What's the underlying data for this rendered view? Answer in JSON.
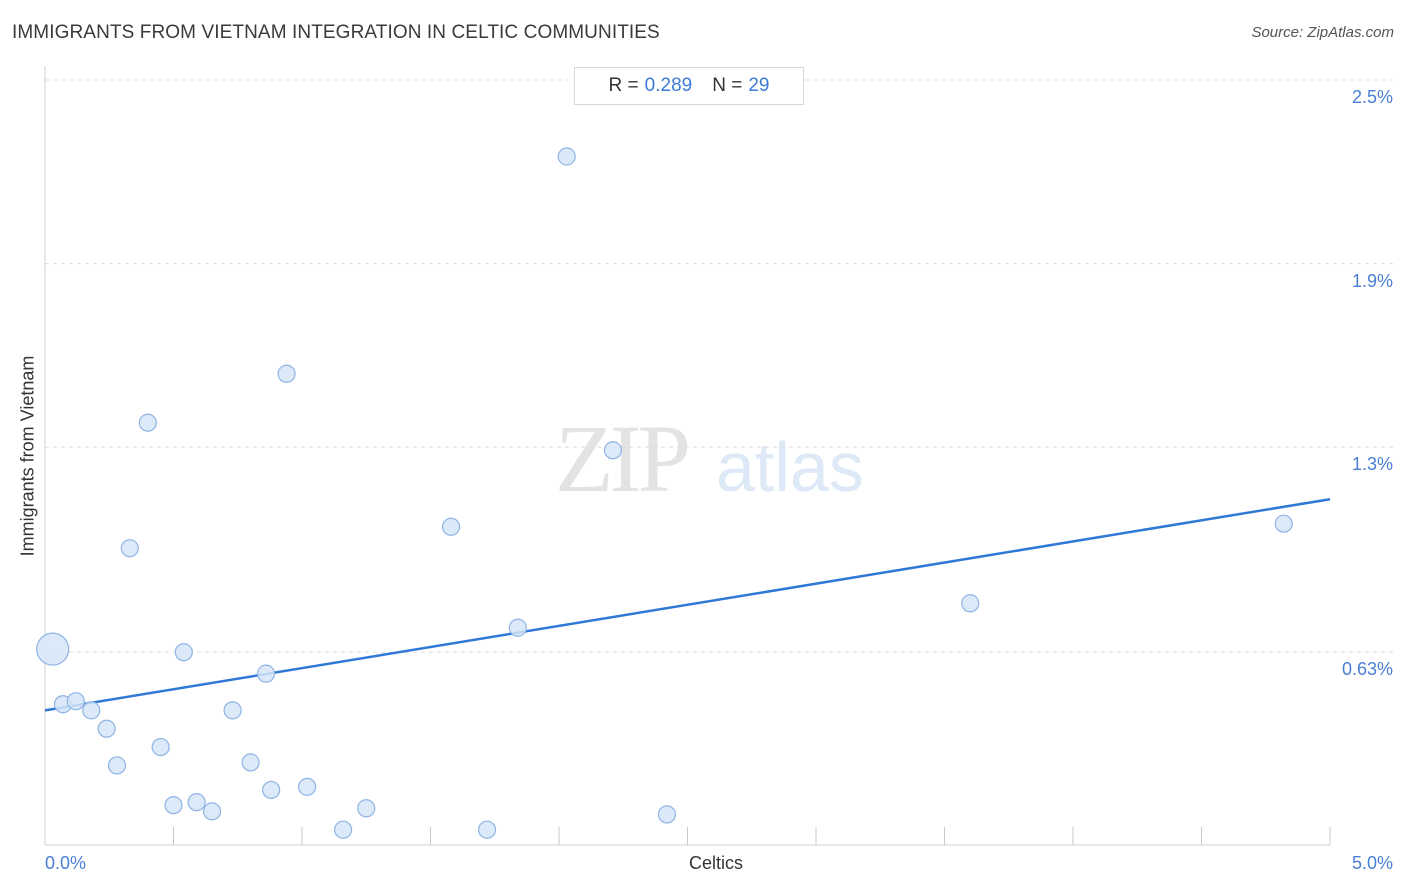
{
  "title": "IMMIGRANTS FROM VIETNAM INTEGRATION IN CELTIC COMMUNITIES",
  "source": "Source: ZipAtlas.com",
  "stats": {
    "r_label": "R =",
    "r_value": "0.289",
    "n_label": "N =",
    "n_value": "29"
  },
  "colors": {
    "accent": "#2f78d6",
    "point_fill": "#d6e5f8",
    "point_stroke": "#8fb4e4",
    "grid": "#dddddd"
  },
  "chart_data": {
    "type": "scatter",
    "title": "IMMIGRANTS FROM VIETNAM INTEGRATION IN CELTIC COMMUNITIES",
    "xlabel": "Celtics",
    "ylabel": "Immigrants from Vietnam",
    "xlim": [
      0,
      5.0
    ],
    "ylim": [
      0,
      2.55
    ],
    "x_tick_labels": [
      {
        "value": 0,
        "label": "0.0%"
      },
      {
        "value": 5.0,
        "label": "5.0%"
      }
    ],
    "y_tick_labels": [
      {
        "value": 0.63,
        "label": "0.63%"
      },
      {
        "value": 1.3,
        "label": "1.3%"
      },
      {
        "value": 1.9,
        "label": "1.9%"
      },
      {
        "value": 2.5,
        "label": "2.5%"
      }
    ],
    "x_minor_ticks": [
      0.5,
      1.0,
      1.5,
      2.0,
      2.5,
      3.0,
      3.5,
      4.0,
      4.5,
      5.0
    ],
    "grid": true,
    "points": [
      {
        "x": 0.03,
        "y": 0.64,
        "size": "large"
      },
      {
        "x": 0.07,
        "y": 0.46
      },
      {
        "x": 0.12,
        "y": 0.47
      },
      {
        "x": 0.18,
        "y": 0.44
      },
      {
        "x": 0.24,
        "y": 0.38
      },
      {
        "x": 0.28,
        "y": 0.26
      },
      {
        "x": 0.33,
        "y": 0.97
      },
      {
        "x": 0.4,
        "y": 1.38
      },
      {
        "x": 0.45,
        "y": 0.32
      },
      {
        "x": 0.5,
        "y": 0.13
      },
      {
        "x": 0.54,
        "y": 0.63
      },
      {
        "x": 0.59,
        "y": 0.14
      },
      {
        "x": 0.65,
        "y": 0.11
      },
      {
        "x": 0.73,
        "y": 0.44
      },
      {
        "x": 0.8,
        "y": 0.27
      },
      {
        "x": 0.86,
        "y": 0.56
      },
      {
        "x": 0.88,
        "y": 0.18
      },
      {
        "x": 0.94,
        "y": 1.54
      },
      {
        "x": 1.02,
        "y": 0.19
      },
      {
        "x": 1.16,
        "y": 0.05
      },
      {
        "x": 1.25,
        "y": 0.12
      },
      {
        "x": 1.58,
        "y": 1.04
      },
      {
        "x": 1.72,
        "y": 0.05
      },
      {
        "x": 1.84,
        "y": 0.71
      },
      {
        "x": 2.03,
        "y": 2.25
      },
      {
        "x": 2.21,
        "y": 1.29
      },
      {
        "x": 2.42,
        "y": 0.1
      },
      {
        "x": 3.6,
        "y": 0.79
      },
      {
        "x": 4.82,
        "y": 1.05
      }
    ],
    "trendline": {
      "x": [
        0,
        5.0
      ],
      "y": [
        0.44,
        1.13
      ]
    }
  }
}
